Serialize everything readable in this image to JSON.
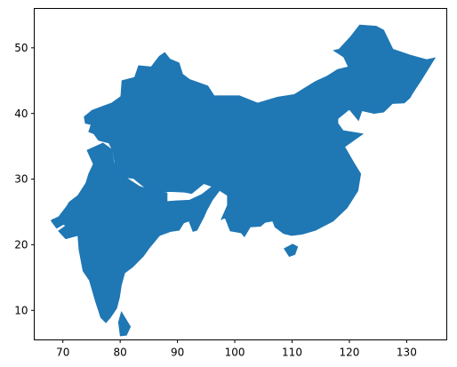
{
  "chart_data": {
    "type": "map",
    "title": "",
    "xlabel": "",
    "ylabel": "",
    "xlim": [
      65,
      137
    ],
    "ylim": [
      5.5,
      56
    ],
    "grid": false,
    "x_ticks": [
      70,
      80,
      90,
      100,
      110,
      120,
      130
    ],
    "y_ticks": [
      10,
      20,
      30,
      40,
      50
    ],
    "fill_color": "#1f77b4",
    "regions": [
      {
        "name": "India",
        "outline": [
          [
            68.2,
            23.9
          ],
          [
            69.4,
            23.9
          ],
          [
            70.1,
            23.1
          ],
          [
            68.9,
            22.5
          ],
          [
            67.9,
            23.7
          ],
          [
            69.3,
            24.3
          ],
          [
            70.6,
            25.8
          ],
          [
            71.1,
            26.5
          ],
          [
            72.6,
            27.5
          ],
          [
            74.0,
            29.4
          ],
          [
            74.5,
            30.8
          ],
          [
            75.3,
            32.3
          ],
          [
            74.2,
            34.4
          ],
          [
            77.0,
            35.5
          ],
          [
            78.6,
            34.5
          ],
          [
            78.9,
            32.5
          ],
          [
            81.1,
            30.2
          ],
          [
            83.4,
            28.9
          ],
          [
            86.2,
            28.1
          ],
          [
            88.2,
            27.9
          ],
          [
            88.2,
            26.6
          ],
          [
            89.8,
            26.7
          ],
          [
            92.1,
            26.8
          ],
          [
            94.3,
            27.7
          ],
          [
            96.2,
            29.0
          ],
          [
            97.3,
            28.2
          ],
          [
            96.1,
            26.8
          ],
          [
            95.1,
            25.2
          ],
          [
            94.6,
            24.2
          ],
          [
            93.4,
            22.2
          ],
          [
            92.7,
            22.0
          ],
          [
            92.0,
            23.6
          ],
          [
            91.1,
            23.3
          ],
          [
            90.3,
            22.2
          ],
          [
            88.8,
            22.0
          ],
          [
            86.9,
            21.4
          ],
          [
            85.1,
            19.5
          ],
          [
            84.1,
            18.3
          ],
          [
            82.2,
            16.6
          ],
          [
            80.8,
            15.7
          ],
          [
            80.2,
            13.8
          ],
          [
            79.9,
            12.0
          ],
          [
            79.4,
            10.3
          ],
          [
            78.3,
            8.9
          ],
          [
            77.5,
            8.1
          ],
          [
            76.6,
            8.9
          ],
          [
            75.7,
            11.3
          ],
          [
            74.6,
            14.6
          ],
          [
            73.5,
            16.0
          ],
          [
            72.8,
            19.2
          ],
          [
            72.6,
            21.4
          ],
          [
            70.5,
            20.9
          ],
          [
            69.2,
            22.1
          ],
          [
            70.5,
            22.9
          ]
        ]
      },
      {
        "name": "China",
        "outline": [
          [
            73.7,
            39.5
          ],
          [
            75.1,
            40.5
          ],
          [
            76.9,
            41.1
          ],
          [
            78.5,
            41.6
          ],
          [
            80.1,
            42.6
          ],
          [
            80.3,
            45.0
          ],
          [
            82.5,
            45.5
          ],
          [
            83.2,
            47.3
          ],
          [
            85.4,
            47.1
          ],
          [
            86.8,
            48.7
          ],
          [
            87.8,
            49.3
          ],
          [
            88.7,
            48.3
          ],
          [
            90.3,
            47.7
          ],
          [
            90.9,
            46.0
          ],
          [
            92.1,
            45.2
          ],
          [
            95.3,
            44.2
          ],
          [
            96.4,
            42.7
          ],
          [
            100.8,
            42.7
          ],
          [
            104.0,
            41.6
          ],
          [
            107.5,
            42.5
          ],
          [
            110.4,
            42.9
          ],
          [
            111.9,
            43.7
          ],
          [
            114.1,
            44.9
          ],
          [
            116.1,
            45.7
          ],
          [
            117.9,
            46.7
          ],
          [
            119.8,
            47.1
          ],
          [
            119.0,
            48.6
          ],
          [
            117.2,
            49.6
          ],
          [
            118.2,
            49.8
          ],
          [
            120.2,
            51.7
          ],
          [
            121.8,
            53.5
          ],
          [
            124.7,
            53.3
          ],
          [
            126.0,
            52.7
          ],
          [
            127.6,
            49.8
          ],
          [
            130.6,
            48.9
          ],
          [
            133.5,
            48.2
          ],
          [
            135.0,
            48.5
          ],
          [
            132.5,
            45.0
          ],
          [
            131.0,
            43.0
          ],
          [
            130.6,
            42.4
          ],
          [
            129.6,
            41.6
          ],
          [
            127.5,
            41.5
          ],
          [
            126.0,
            40.2
          ],
          [
            124.3,
            40.0
          ],
          [
            122.2,
            40.4
          ],
          [
            121.6,
            38.9
          ],
          [
            120.0,
            40.6
          ],
          [
            118.0,
            39.2
          ],
          [
            118.0,
            38.5
          ],
          [
            118.9,
            37.4
          ],
          [
            122.4,
            36.9
          ],
          [
            119.2,
            34.9
          ],
          [
            120.8,
            32.5
          ],
          [
            122.0,
            30.8
          ],
          [
            121.5,
            28.2
          ],
          [
            119.6,
            25.6
          ],
          [
            117.2,
            23.6
          ],
          [
            114.1,
            22.2
          ],
          [
            111.8,
            21.6
          ],
          [
            109.9,
            21.4
          ],
          [
            108.5,
            21.7
          ],
          [
            107.0,
            22.7
          ],
          [
            106.6,
            23.6
          ],
          [
            105.3,
            23.4
          ],
          [
            104.5,
            22.8
          ],
          [
            102.7,
            22.7
          ],
          [
            101.7,
            21.2
          ],
          [
            101.1,
            21.8
          ],
          [
            99.2,
            22.1
          ],
          [
            98.3,
            24.1
          ],
          [
            97.6,
            23.8
          ],
          [
            98.7,
            26.0
          ],
          [
            98.7,
            27.5
          ],
          [
            97.1,
            28.4
          ],
          [
            96.2,
            28.8
          ],
          [
            94.6,
            29.3
          ],
          [
            92.5,
            27.8
          ],
          [
            91.2,
            28.0
          ],
          [
            88.7,
            28.1
          ],
          [
            86.0,
            27.9
          ],
          [
            84.7,
            28.4
          ],
          [
            82.3,
            30.1
          ],
          [
            81.1,
            30.2
          ],
          [
            79.2,
            31.7
          ],
          [
            78.7,
            34.3
          ],
          [
            78.0,
            35.5
          ],
          [
            76.2,
            35.9
          ],
          [
            75.4,
            36.9
          ],
          [
            74.5,
            37.2
          ],
          [
            74.9,
            38.3
          ],
          [
            73.9,
            38.5
          ],
          [
            73.7,
            39.5
          ]
        ]
      },
      {
        "name": "Hainan",
        "outline": [
          [
            108.6,
            19.4
          ],
          [
            109.5,
            18.2
          ],
          [
            110.5,
            18.5
          ],
          [
            111.0,
            19.7
          ],
          [
            110.1,
            20.1
          ],
          [
            108.6,
            19.4
          ]
        ]
      },
      {
        "name": "Sri Lanka",
        "outline": [
          [
            79.7,
            8.2
          ],
          [
            80.2,
            9.8
          ],
          [
            81.8,
            7.5
          ],
          [
            81.1,
            6.2
          ],
          [
            80.0,
            6.1
          ],
          [
            79.7,
            8.2
          ]
        ]
      }
    ]
  }
}
